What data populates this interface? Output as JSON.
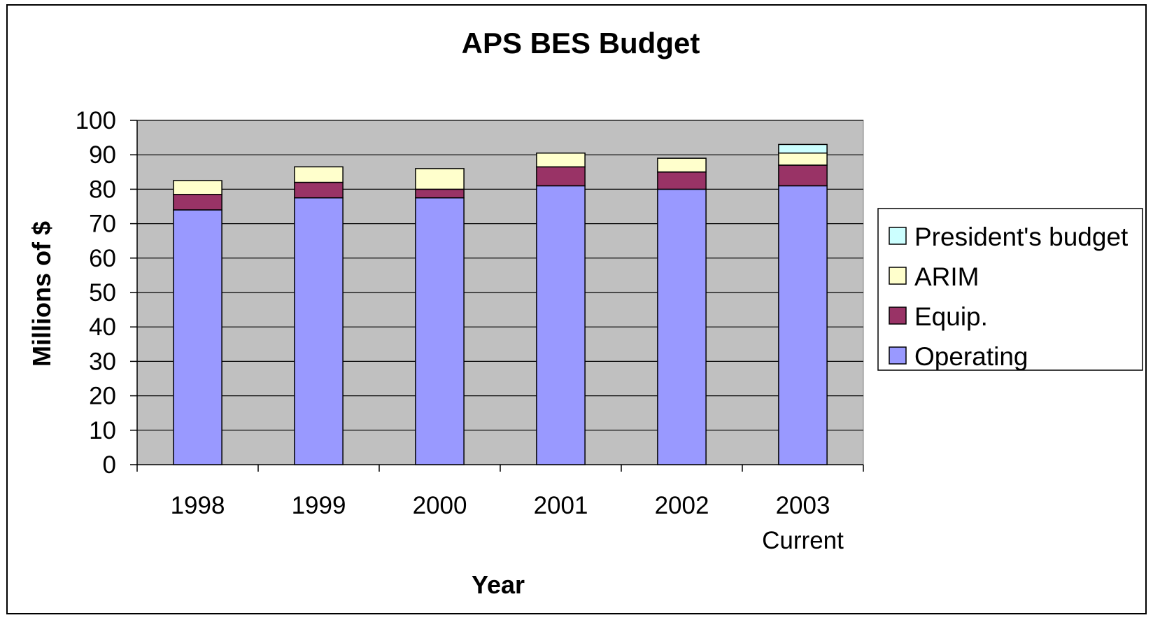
{
  "chart_data": {
    "type": "bar",
    "stacked": true,
    "title": "APS BES Budget",
    "xlabel": "Year",
    "ylabel": "Millions of $",
    "ylim": [
      0,
      100
    ],
    "yticks": [
      0,
      10,
      20,
      30,
      40,
      50,
      60,
      70,
      80,
      90,
      100
    ],
    "grid": true,
    "legend_position": "right",
    "categories": [
      [
        "1998"
      ],
      [
        "1999"
      ],
      [
        "2000"
      ],
      [
        "2001"
      ],
      [
        "2002"
      ],
      [
        "2003",
        "Current"
      ]
    ],
    "series": [
      {
        "name": "Operating",
        "color": "#9999ff",
        "values": [
          74,
          77.5,
          77.5,
          81,
          80,
          81
        ]
      },
      {
        "name": "Equip.",
        "color": "#993366",
        "values": [
          4.5,
          4.5,
          2.5,
          5.5,
          5,
          6
        ]
      },
      {
        "name": "ARIM",
        "color": "#ffffcc",
        "values": [
          4,
          4.5,
          6,
          4,
          4,
          3.5
        ]
      },
      {
        "name": "President's budget",
        "color": "#ccffff",
        "values": [
          0,
          0,
          0,
          0,
          0,
          2.5
        ]
      }
    ],
    "plot_background": "#c0c0c0",
    "legend_order": [
      "President's budget",
      "ARIM",
      "Equip.",
      "Operating"
    ]
  }
}
